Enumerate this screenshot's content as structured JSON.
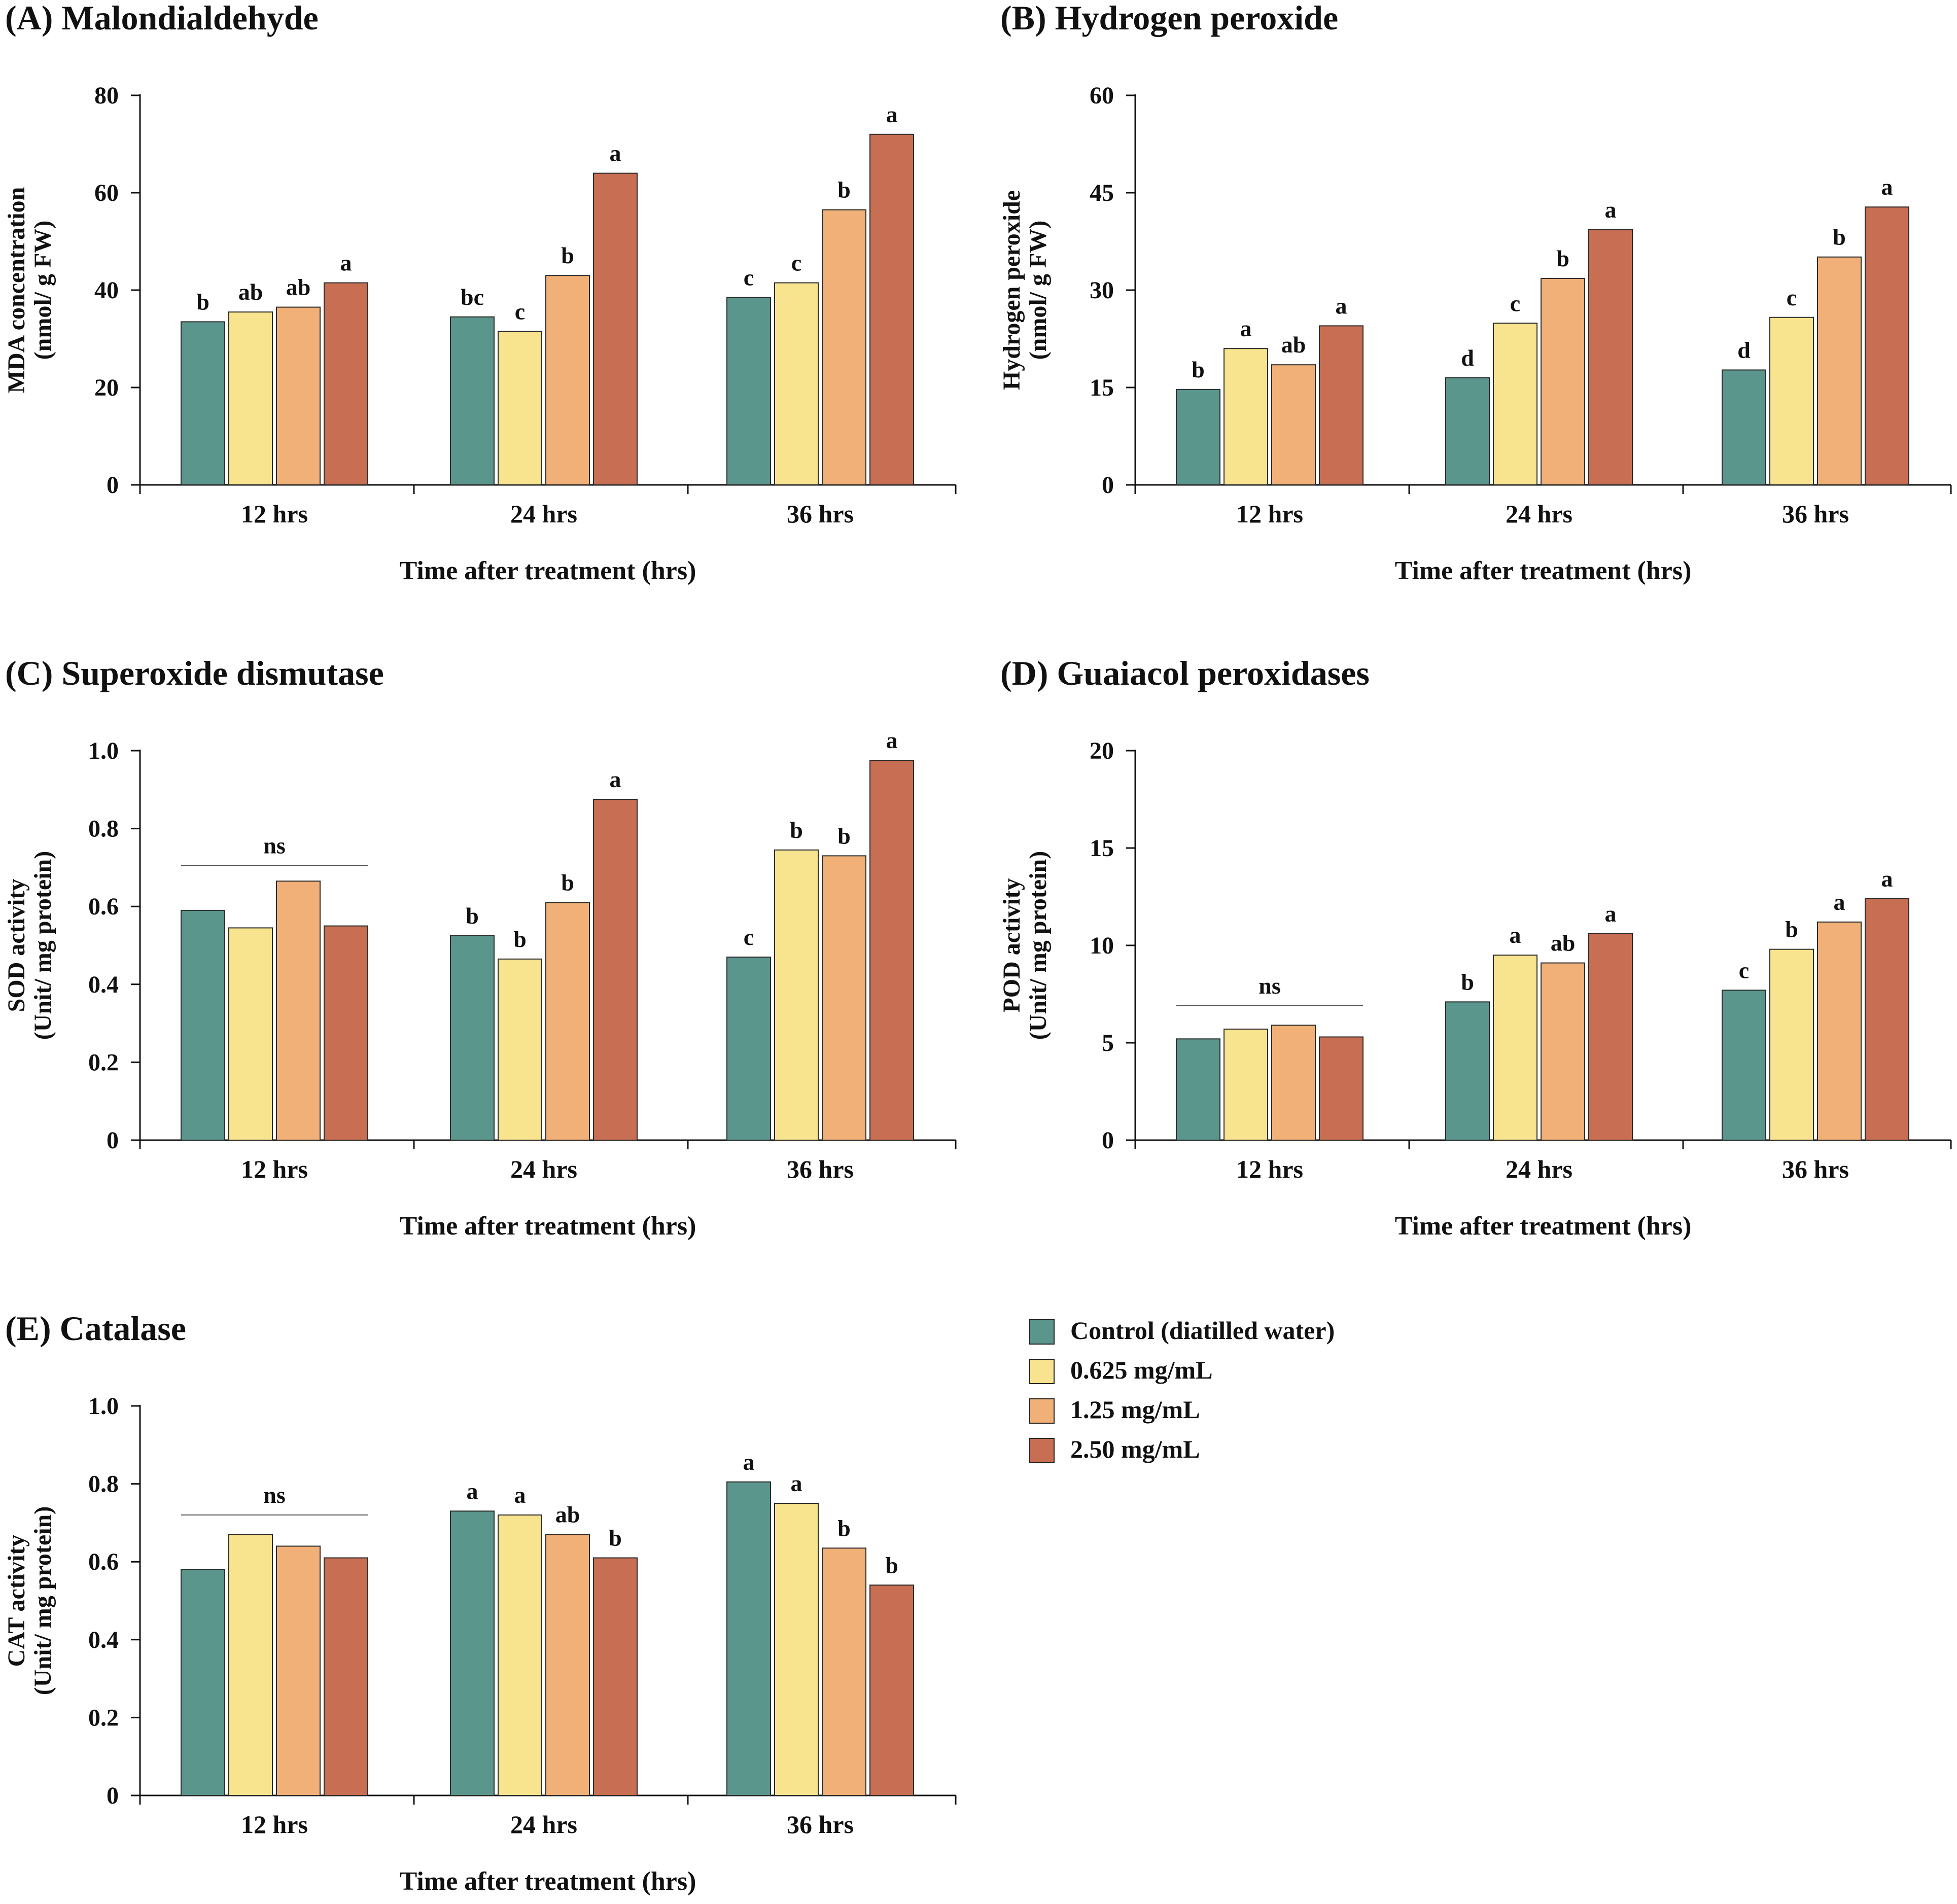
{
  "figure": {
    "xlabel": "Time after treatment (hrs)",
    "categories": [
      "12 hrs",
      "24 hrs",
      "36 hrs"
    ]
  },
  "legend": {
    "items": [
      {
        "label": "Control (diatilled water)",
        "color": "#5a968c"
      },
      {
        "label": "0.625 mg/mL",
        "color": "#f8e48e"
      },
      {
        "label": "1.25 mg/mL",
        "color": "#f1b077"
      },
      {
        "label": "2.50 mg/mL",
        "color": "#c86e52"
      }
    ]
  },
  "chart_data": [
    {
      "id": "A",
      "type": "bar",
      "title": "(A) Malondialdehyde",
      "ylabel": [
        "MDA concentration",
        "(nmol/ g FW)"
      ],
      "xlabel": "Time after treatment (hrs)",
      "categories": [
        "12 hrs",
        "24 hrs",
        "36 hrs"
      ],
      "ylim": [
        0,
        80
      ],
      "yticks": [
        0,
        20,
        40,
        60,
        80
      ],
      "yticklabels": [
        "0",
        "20",
        "40",
        "60",
        "80"
      ],
      "series": [
        {
          "name": "Control (diatilled water)",
          "values": [
            33.5,
            34.5,
            38.5
          ],
          "letters": [
            "b",
            "bc",
            "c"
          ]
        },
        {
          "name": "0.625 mg/mL",
          "values": [
            35.5,
            31.5,
            41.5
          ],
          "letters": [
            "ab",
            "c",
            "c"
          ]
        },
        {
          "name": "1.25 mg/mL",
          "values": [
            36.5,
            43,
            56.5
          ],
          "letters": [
            "ab",
            "b",
            "b"
          ]
        },
        {
          "name": "2.50 mg/mL",
          "values": [
            41.5,
            64,
            72
          ],
          "letters": [
            "a",
            "a",
            "a"
          ]
        }
      ],
      "ns": []
    },
    {
      "id": "B",
      "type": "bar",
      "title": "(B) Hydrogen peroxide",
      "ylabel": [
        "Hydrogen peroxide",
        "(nmol/ g FW)"
      ],
      "xlabel": "Time after treatment (hrs)",
      "categories": [
        "12 hrs",
        "24 hrs",
        "36 hrs"
      ],
      "ylim": [
        0,
        60
      ],
      "yticks": [
        0,
        15,
        30,
        45,
        60
      ],
      "yticklabels": [
        "0",
        "15",
        "30",
        "45",
        "60"
      ],
      "series": [
        {
          "name": "Control (diatilled water)",
          "values": [
            14.7,
            16.5,
            17.7
          ],
          "letters": [
            "b",
            "d",
            "d"
          ]
        },
        {
          "name": "0.625 mg/mL",
          "values": [
            21,
            24.9,
            25.8
          ],
          "letters": [
            "a",
            "c",
            "c"
          ]
        },
        {
          "name": "1.25 mg/mL",
          "values": [
            18.5,
            31.8,
            35.1
          ],
          "letters": [
            "ab",
            "b",
            "b"
          ]
        },
        {
          "name": "2.50 mg/mL",
          "values": [
            24.5,
            39.3,
            42.8
          ],
          "letters": [
            "a",
            "a",
            "a"
          ]
        }
      ],
      "ns": []
    },
    {
      "id": "C",
      "type": "bar",
      "title": "(C) Superoxide dismutase",
      "ylabel": [
        "SOD activity",
        "(Unit/ mg protein)"
      ],
      "xlabel": "Time after treatment (hrs)",
      "categories": [
        "12 hrs",
        "24 hrs",
        "36 hrs"
      ],
      "ylim": [
        0,
        1.0
      ],
      "yticks": [
        0,
        0.2,
        0.4,
        0.6,
        0.8,
        1.0
      ],
      "yticklabels": [
        "0",
        "0.2",
        "0.4",
        "0.6",
        "0.8",
        "1.0"
      ],
      "series": [
        {
          "name": "Control (diatilled water)",
          "values": [
            0.59,
            0.525,
            0.47
          ],
          "letters": [
            "",
            "b",
            "c"
          ]
        },
        {
          "name": "0.625 mg/mL",
          "values": [
            0.545,
            0.465,
            0.745
          ],
          "letters": [
            "",
            "b",
            "b"
          ]
        },
        {
          "name": "1.25 mg/mL",
          "values": [
            0.665,
            0.61,
            0.73
          ],
          "letters": [
            "",
            "b",
            "b"
          ]
        },
        {
          "name": "2.50 mg/mL",
          "values": [
            0.55,
            0.875,
            0.975
          ],
          "letters": [
            "",
            "a",
            "a"
          ]
        }
      ],
      "ns": [
        {
          "group": 0,
          "label": "ns",
          "level": 0.705
        }
      ]
    },
    {
      "id": "D",
      "type": "bar",
      "title": "(D) Guaiacol peroxidases",
      "ylabel": [
        "POD activity",
        "(Unit/ mg protein)"
      ],
      "xlabel": "Time after treatment (hrs)",
      "categories": [
        "12 hrs",
        "24 hrs",
        "36 hrs"
      ],
      "ylim": [
        0,
        20
      ],
      "yticks": [
        0,
        5,
        10,
        15,
        20
      ],
      "yticklabels": [
        "0",
        "5",
        "10",
        "15",
        "20"
      ],
      "series": [
        {
          "name": "Control (diatilled water)",
          "values": [
            5.2,
            7.1,
            7.7
          ],
          "letters": [
            "",
            "b",
            "c"
          ]
        },
        {
          "name": "0.625 mg/mL",
          "values": [
            5.7,
            9.5,
            9.8
          ],
          "letters": [
            "",
            "a",
            "b"
          ]
        },
        {
          "name": "1.25 mg/mL",
          "values": [
            5.9,
            9.1,
            11.2
          ],
          "letters": [
            "",
            "ab",
            "a"
          ]
        },
        {
          "name": "2.50 mg/mL",
          "values": [
            5.3,
            10.6,
            12.4
          ],
          "letters": [
            "",
            "a",
            "a"
          ]
        }
      ],
      "ns": [
        {
          "group": 0,
          "label": "ns",
          "level": 6.9
        }
      ]
    },
    {
      "id": "E",
      "type": "bar",
      "title": "(E) Catalase",
      "ylabel": [
        "CAT activity",
        "(Unit/ mg protein)"
      ],
      "xlabel": "Time after treatment (hrs)",
      "categories": [
        "12 hrs",
        "24 hrs",
        "36 hrs"
      ],
      "ylim": [
        0,
        1.0
      ],
      "yticks": [
        0,
        0.2,
        0.4,
        0.6,
        0.8,
        1.0
      ],
      "yticklabels": [
        "0",
        "0.2",
        "0.4",
        "0.6",
        "0.8",
        "1.0"
      ],
      "series": [
        {
          "name": "Control (diatilled water)",
          "values": [
            0.58,
            0.73,
            0.805
          ],
          "letters": [
            "",
            "a",
            "a"
          ]
        },
        {
          "name": "0.625 mg/mL",
          "values": [
            0.67,
            0.72,
            0.75
          ],
          "letters": [
            "",
            "a",
            "a"
          ]
        },
        {
          "name": "1.25 mg/mL",
          "values": [
            0.64,
            0.67,
            0.635
          ],
          "letters": [
            "",
            "ab",
            "b"
          ]
        },
        {
          "name": "2.50 mg/mL",
          "values": [
            0.61,
            0.61,
            0.54
          ],
          "letters": [
            "",
            "b",
            "b"
          ]
        }
      ],
      "ns": [
        {
          "group": 0,
          "label": "ns",
          "level": 0.72
        }
      ]
    }
  ]
}
